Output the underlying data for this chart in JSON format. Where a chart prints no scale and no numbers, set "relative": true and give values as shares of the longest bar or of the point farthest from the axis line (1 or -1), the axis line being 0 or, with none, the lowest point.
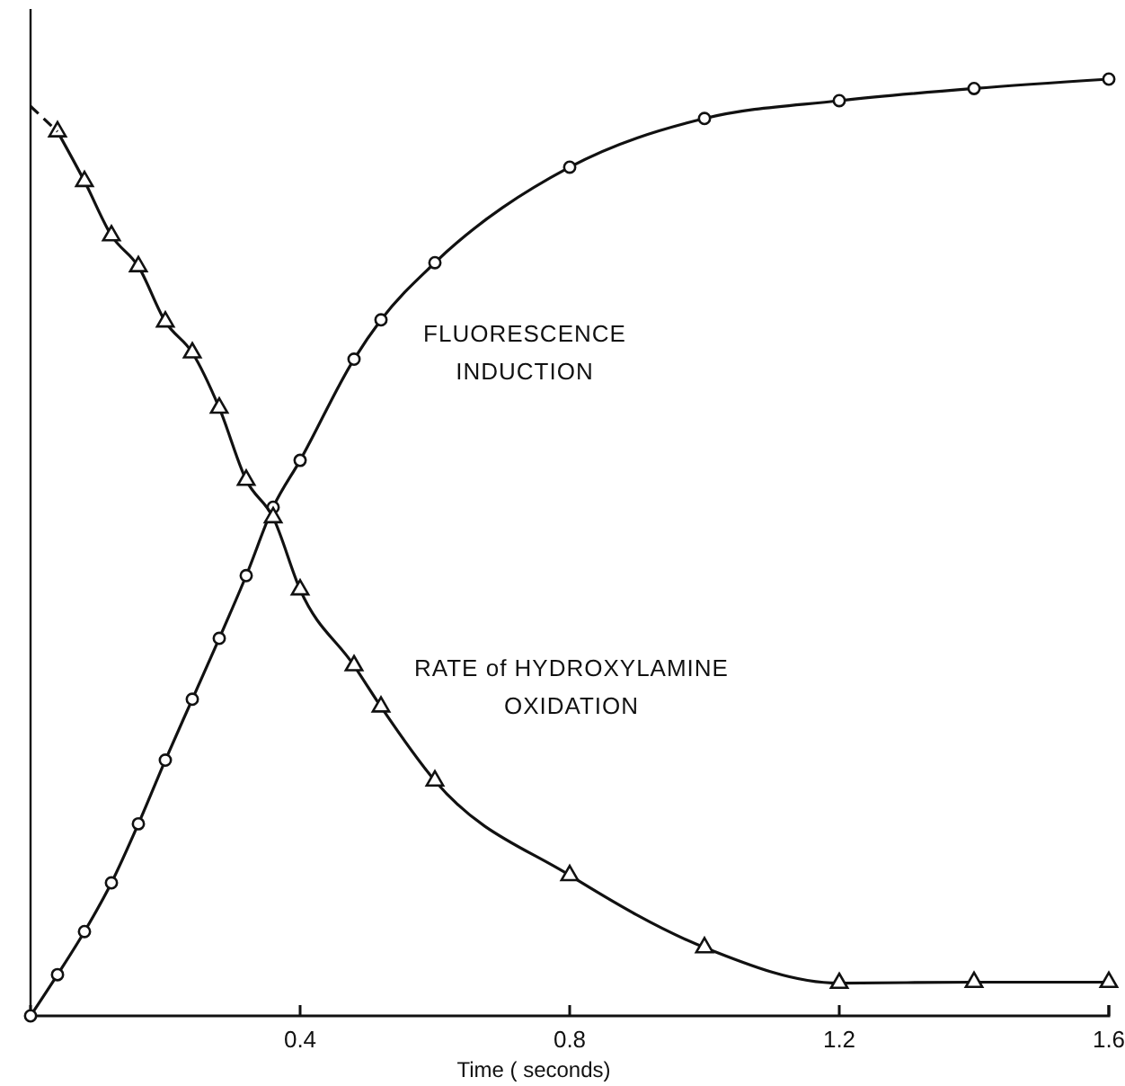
{
  "chart_data": {
    "type": "line",
    "xlabel": "Time ( seconds)",
    "relative": true,
    "xlim": [
      0,
      1.6
    ],
    "xticks": [
      0.4,
      0.8,
      1.2,
      1.6
    ],
    "grid": false,
    "series": [
      {
        "name": "FLUORESCENCE\nINDUCTION",
        "color": "#111111",
        "marker": "circle",
        "x": [
          0,
          0.04,
          0.08,
          0.12,
          0.16,
          0.2,
          0.24,
          0.28,
          0.32,
          0.36,
          0.4,
          0.48,
          0.52,
          0.6,
          0.8,
          1.0,
          1.2,
          1.4,
          1.6
        ],
        "values": [
          0,
          0.044,
          0.09,
          0.142,
          0.205,
          0.273,
          0.338,
          0.403,
          0.47,
          0.543,
          0.593,
          0.701,
          0.743,
          0.804,
          0.906,
          0.958,
          0.977,
          0.99,
          1
        ]
      },
      {
        "name": "RATE of HYDROXYLAMINE\nOXIDATION",
        "color": "#111111",
        "marker": "triangle",
        "x": [
          0.04,
          0.08,
          0.12,
          0.16,
          0.2,
          0.24,
          0.28,
          0.32,
          0.36,
          0.4,
          0.48,
          0.52,
          0.6,
          0.8,
          1.0,
          1.2,
          1.4,
          1.6
        ],
        "values": [
          0.944,
          0.891,
          0.833,
          0.8,
          0.741,
          0.708,
          0.649,
          0.572,
          0.532,
          0.455,
          0.374,
          0.33,
          0.251,
          0.15,
          0.073,
          0.035,
          0.036,
          0.036
        ]
      },
      {
        "color": "#111111",
        "marker": "none",
        "line_style": "dashed",
        "x": [
          0,
          0.04
        ],
        "values": [
          0.971,
          0.944
        ]
      }
    ]
  }
}
